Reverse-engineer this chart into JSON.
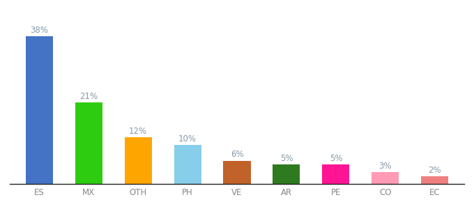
{
  "categories": [
    "ES",
    "MX",
    "OTH",
    "PH",
    "VE",
    "AR",
    "PE",
    "CO",
    "EC"
  ],
  "values": [
    38,
    21,
    12,
    10,
    6,
    5,
    5,
    3,
    2
  ],
  "bar_colors": [
    "#4472C4",
    "#2ECC11",
    "#FFA500",
    "#87CEEB",
    "#C0622A",
    "#2D7A1F",
    "#FF1493",
    "#FF9BB5",
    "#F08080"
  ],
  "label_color": "#8899AA",
  "background_color": "#ffffff",
  "ylim": [
    0,
    43
  ],
  "bar_width": 0.55,
  "tick_color": "#888888"
}
